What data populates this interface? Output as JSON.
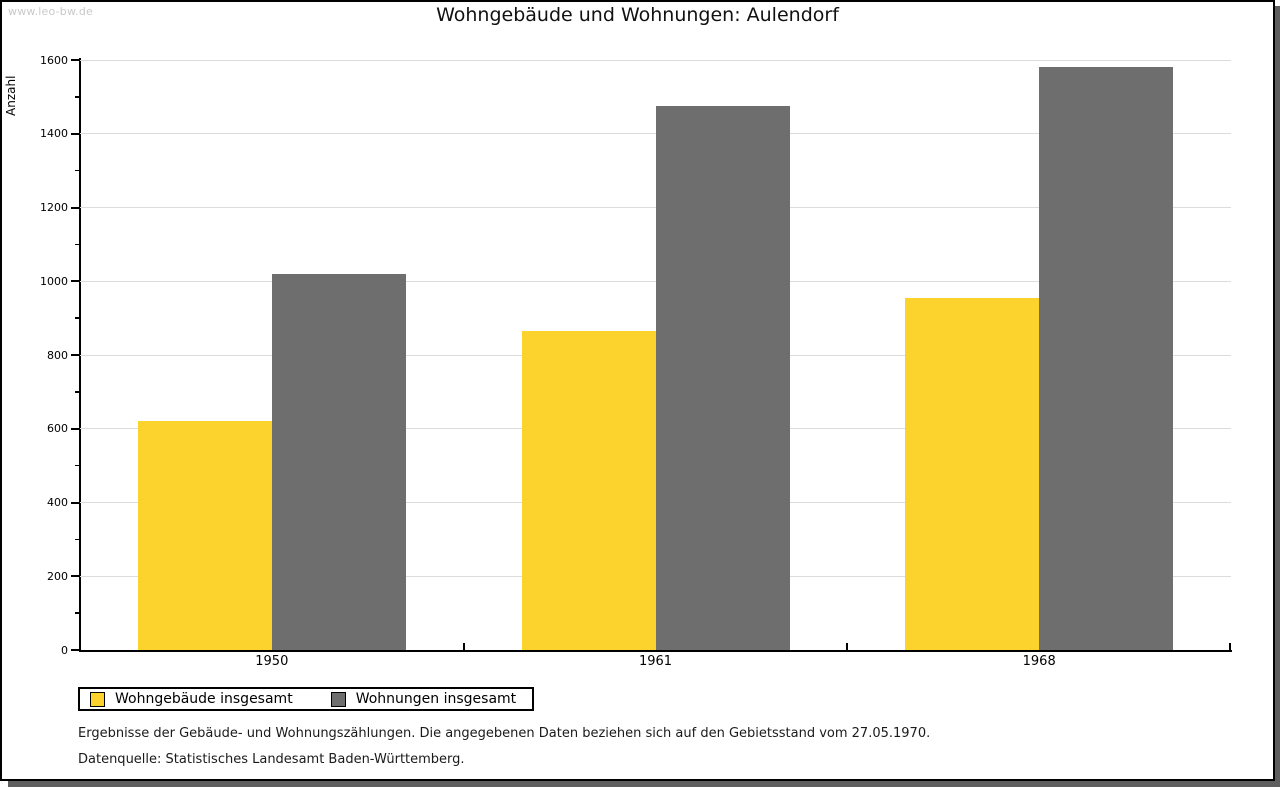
{
  "watermark": "www.leo-bw.de",
  "header": {
    "title": "Wohngebäude und Wohnungen: Aulendorf"
  },
  "chart_data": {
    "type": "bar",
    "title": "Wohngebäude und Wohnungen: Aulendorf",
    "ylabel": "Anzahl",
    "xlabel": "",
    "categories": [
      "1950",
      "1961",
      "1968"
    ],
    "series": [
      {
        "name": "Wohngebäude insgesamt",
        "color": "#fcd32d",
        "values": [
          620,
          865,
          955
        ]
      },
      {
        "name": "Wohnungen insgesamt",
        "color": "#6e6e6e",
        "values": [
          1020,
          1475,
          1580
        ]
      }
    ],
    "ylim": [
      0,
      1600
    ],
    "ytick_step": 200,
    "yminor_step": 100,
    "grid": true,
    "legend_position": "bottom-left"
  },
  "footer": {
    "note": "Ergebnisse der Gebäude- und Wohnungszählungen. Die angegebenen Daten beziehen sich auf den Gebietsstand vom 27.05.1970.",
    "source": "Datenquelle: Statistisches Landesamt Baden-Württemberg."
  },
  "colors": {
    "gridline": "#dcdcdc",
    "axis": "#000000",
    "watermark_text": "#c9c9c9",
    "frame_shadow": "#5e5e5e"
  }
}
